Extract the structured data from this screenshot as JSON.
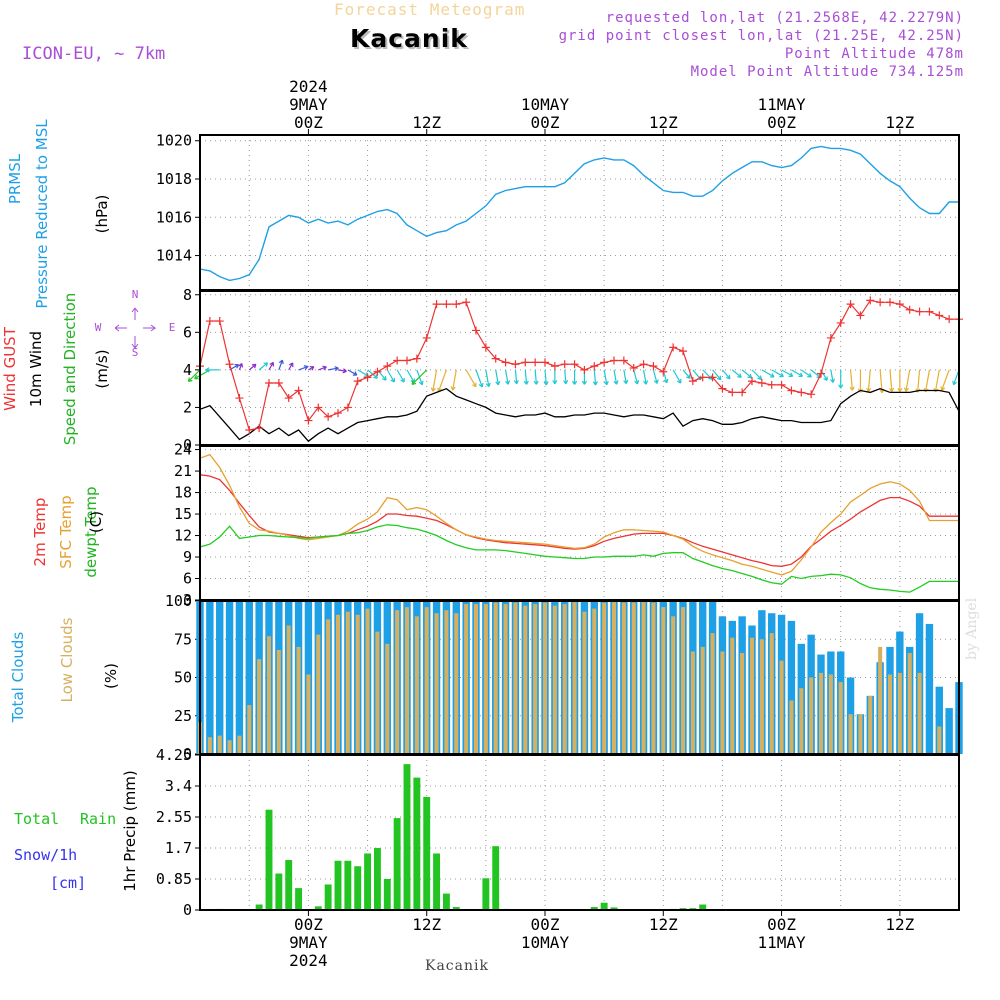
{
  "header": {
    "title": "Kacanik",
    "subtitle": "Forecast Meteogram",
    "model": "ICON-EU, ~ 7km",
    "requested": "requested lon,lat (21.2568E, 42.2279N)",
    "grid_point": "grid point closest lon,lat (21.25E, 42.25N)",
    "point_altitude": "Point Altitude 478m",
    "model_altitude": "Model Point Altitude 734.125m",
    "credit": "by Angel",
    "footer": "Kacanik"
  },
  "time_axis": {
    "year": "2024",
    "top_labels": [
      {
        "t": 0,
        "lines": [
          "2024",
          "9MAY",
          "00Z"
        ]
      },
      {
        "t": 12,
        "lines": [
          "12Z"
        ]
      },
      {
        "t": 24,
        "lines": [
          "10MAY",
          "00Z"
        ]
      },
      {
        "t": 36,
        "lines": [
          "12Z"
        ]
      },
      {
        "t": 48,
        "lines": [
          "11MAY",
          "00Z"
        ]
      },
      {
        "t": 60,
        "lines": [
          "12Z"
        ]
      }
    ],
    "bottom_labels": [
      {
        "t": 0,
        "lines": [
          "00Z",
          "9MAY",
          "2024"
        ]
      },
      {
        "t": 12,
        "lines": [
          "12Z"
        ]
      },
      {
        "t": 24,
        "lines": [
          "00Z",
          "10MAY"
        ]
      },
      {
        "t": 36,
        "lines": [
          "12Z"
        ]
      },
      {
        "t": 48,
        "lines": [
          "00Z",
          "11MAY"
        ]
      },
      {
        "t": 60,
        "lines": [
          "12Z"
        ]
      }
    ],
    "range": [
      -11,
      66
    ]
  },
  "panel_labels": {
    "pressure": [
      "PRMSL",
      "Pressure Reduced to MSL",
      "(hPa)"
    ],
    "wind": [
      "Wind GUST",
      "10m Wind",
      "Speed and Direction",
      "(m/s)"
    ],
    "compass": {
      "n": "N",
      "s": "S",
      "w": "W",
      "e": "E"
    },
    "temp": [
      "2m Temp",
      "SFC Temp",
      "dewpt Temp",
      "(C)"
    ],
    "clouds": [
      "Total Clouds",
      "Low Clouds",
      "(%)"
    ],
    "precip": [
      "Total",
      "Rain",
      "Snow/1h",
      "[cm]",
      "1hr Precip (mm)"
    ]
  },
  "colors": {
    "pressure": "#1ea0e6",
    "gust": "#ee3333",
    "wind": "#000000",
    "temp2m": "#ee3333",
    "sfc": "#e6a030",
    "dewpt": "#22cc22",
    "total_clouds": "#1ea0e6",
    "low_clouds": "#d6b060",
    "rain": "#22c422",
    "label_purple": "#a94ed6",
    "snow_label": "#3333ee"
  },
  "chart_data": [
    {
      "type": "line",
      "title": "PRMSL Pressure Reduced to MSL",
      "ylabel": "(hPa)",
      "ylim": [
        1012.2,
        1020.3
      ],
      "yticks": [
        1014,
        1016,
        1018,
        1020
      ],
      "x_hours": [
        -11,
        -10,
        -9,
        -8,
        -7,
        -6,
        -5,
        -4,
        -3,
        -2,
        -1,
        0,
        1,
        2,
        3,
        4,
        5,
        6,
        7,
        8,
        9,
        10,
        11,
        12,
        13,
        14,
        15,
        16,
        17,
        18,
        19,
        20,
        21,
        22,
        23,
        24,
        25,
        26,
        27,
        28,
        29,
        30,
        31,
        32,
        33,
        34,
        35,
        36,
        37,
        38,
        39,
        40,
        41,
        42,
        43,
        44,
        45,
        46,
        47,
        48,
        49,
        50,
        51,
        52,
        53,
        54,
        55,
        56,
        57,
        58,
        59,
        60,
        61,
        62,
        63,
        64,
        65,
        66
      ],
      "series": [
        {
          "name": "PRMSL",
          "values": [
            1013.3,
            1013.2,
            1012.9,
            1012.7,
            1012.8,
            1013.0,
            1013.8,
            1015.5,
            1015.8,
            1016.1,
            1016.0,
            1015.7,
            1015.9,
            1015.7,
            1015.8,
            1015.6,
            1015.9,
            1016.1,
            1016.3,
            1016.4,
            1016.2,
            1015.6,
            1015.3,
            1015.0,
            1015.2,
            1015.3,
            1015.6,
            1015.8,
            1016.2,
            1016.6,
            1017.2,
            1017.4,
            1017.5,
            1017.6,
            1017.6,
            1017.6,
            1017.6,
            1017.8,
            1018.3,
            1018.8,
            1019.0,
            1019.1,
            1019.0,
            1019.0,
            1018.7,
            1018.2,
            1017.8,
            1017.4,
            1017.3,
            1017.3,
            1017.1,
            1017.1,
            1017.4,
            1017.9,
            1018.3,
            1018.6,
            1018.9,
            1018.9,
            1018.7,
            1018.6,
            1018.7,
            1019.1,
            1019.6,
            1019.7,
            1019.6,
            1019.6,
            1019.5,
            1019.3,
            1018.8,
            1018.3,
            1017.9,
            1017.6,
            1017.0,
            1016.5,
            1016.2,
            1016.2,
            1016.8,
            1016.8
          ]
        }
      ]
    },
    {
      "type": "line",
      "title": "Wind GUST / 10m Wind Speed and Direction",
      "ylabel": "(m/s)",
      "ylim": [
        0,
        8.2
      ],
      "yticks": [
        0,
        2,
        4,
        6,
        8
      ],
      "x_hours_ref": "same as pressure",
      "series": [
        {
          "name": "Wind GUST",
          "values": [
            4.2,
            6.6,
            6.6,
            4.3,
            2.5,
            0.8,
            0.9,
            3.3,
            3.3,
            2.5,
            2.9,
            1.3,
            2.0,
            1.5,
            1.7,
            2.0,
            3.4,
            3.6,
            3.9,
            4.2,
            4.5,
            4.5,
            4.6,
            5.7,
            7.5,
            7.5,
            7.5,
            7.6,
            6.1,
            5.2,
            4.6,
            4.4,
            4.3,
            4.4,
            4.4,
            4.4,
            4.2,
            4.3,
            4.3,
            4.0,
            4.2,
            4.4,
            4.5,
            4.5,
            4.1,
            4.3,
            4.2,
            3.9,
            5.2,
            5.0,
            3.4,
            3.6,
            3.6,
            3.0,
            2.8,
            2.8,
            3.4,
            3.3,
            3.2,
            3.2,
            2.9,
            2.8,
            2.7,
            3.8,
            5.7,
            6.5,
            7.5,
            6.9,
            7.7,
            7.6,
            7.6,
            7.5,
            7.2,
            7.1,
            7.1,
            6.9,
            6.7,
            6.7
          ]
        },
        {
          "name": "10m Wind",
          "values": [
            1.9,
            2.1,
            1.5,
            0.9,
            0.3,
            0.6,
            1.0,
            0.6,
            0.9,
            0.5,
            0.8,
            0.2,
            0.6,
            0.9,
            0.6,
            0.9,
            1.2,
            1.3,
            1.4,
            1.5,
            1.5,
            1.6,
            1.8,
            2.6,
            2.8,
            3.0,
            2.6,
            2.4,
            2.2,
            2.0,
            1.7,
            1.6,
            1.5,
            1.6,
            1.6,
            1.7,
            1.5,
            1.5,
            1.6,
            1.6,
            1.7,
            1.7,
            1.6,
            1.5,
            1.6,
            1.6,
            1.5,
            1.4,
            1.7,
            1.0,
            1.3,
            1.4,
            1.3,
            1.1,
            1.1,
            1.2,
            1.4,
            1.5,
            1.4,
            1.3,
            1.3,
            1.2,
            1.2,
            1.2,
            1.3,
            2.2,
            2.6,
            2.9,
            2.8,
            3.0,
            2.8,
            2.8,
            2.8,
            2.9,
            2.9,
            2.9,
            2.8,
            1.8
          ]
        }
      ],
      "wind_direction_deg": [
        45,
        60,
        90,
        240,
        200,
        230,
        230,
        210,
        200,
        210,
        250,
        240,
        250,
        260,
        280,
        300,
        300,
        310,
        320,
        330,
        330,
        330,
        340,
        45,
        10,
        20,
        10,
        330,
        340,
        350,
        350,
        350,
        355,
        355,
        355,
        355,
        0,
        355,
        0,
        0,
        355,
        350,
        350,
        350,
        345,
        350,
        345,
        345,
        330,
        320,
        320,
        315,
        320,
        320,
        310,
        310,
        315,
        300,
        300,
        300,
        300,
        305,
        310,
        330,
        350,
        0,
        355,
        0,
        5,
        355,
        355,
        0,
        10,
        5,
        10,
        10,
        20,
        20
      ]
    },
    {
      "type": "line",
      "title": "2m Temp / SFC Temp / dewpt Temp",
      "ylabel": "(C)",
      "ylim": [
        3,
        24.5
      ],
      "yticks": [
        3,
        6,
        9,
        12,
        15,
        18,
        21,
        24
      ],
      "series": [
        {
          "name": "2m Temp",
          "values": [
            20.5,
            20.3,
            19.8,
            18.3,
            16.5,
            14.8,
            13.2,
            12.5,
            12.3,
            12.1,
            11.9,
            11.7,
            11.8,
            11.9,
            12.0,
            12.3,
            12.8,
            13.3,
            14.0,
            15.0,
            15.0,
            14.8,
            14.7,
            14.4,
            14.1,
            13.5,
            12.8,
            12.1,
            11.7,
            11.4,
            11.2,
            11.0,
            10.9,
            10.8,
            10.7,
            10.6,
            10.4,
            10.2,
            10.1,
            10.2,
            10.6,
            11.2,
            11.6,
            11.9,
            12.2,
            12.3,
            12.3,
            12.3,
            12.0,
            11.6,
            11.0,
            10.5,
            10.1,
            9.7,
            9.3,
            8.9,
            8.5,
            8.2,
            7.8,
            7.7,
            8.0,
            9.0,
            10.5,
            11.5,
            12.6,
            13.4,
            14.3,
            15.3,
            16.1,
            16.9,
            17.3,
            17.3,
            16.8,
            16.1,
            14.7,
            14.7,
            14.7,
            14.7
          ]
        },
        {
          "name": "SFC Temp",
          "values": [
            22.8,
            23.3,
            21.5,
            19.0,
            16.0,
            13.7,
            12.8,
            12.6,
            12.3,
            12.0,
            11.6,
            11.4,
            11.6,
            11.8,
            12.0,
            12.6,
            13.6,
            14.3,
            15.3,
            17.3,
            17.0,
            15.6,
            15.9,
            15.6,
            14.7,
            13.7,
            12.8,
            12.1,
            11.8,
            11.5,
            11.3,
            11.2,
            11.1,
            11.0,
            10.9,
            10.8,
            10.6,
            10.4,
            10.2,
            10.3,
            10.8,
            11.8,
            12.4,
            12.8,
            12.8,
            12.7,
            12.6,
            12.5,
            12.0,
            11.5,
            10.5,
            9.8,
            9.3,
            8.9,
            8.5,
            8.0,
            7.7,
            7.3,
            6.9,
            6.5,
            7.0,
            8.6,
            10.4,
            12.5,
            13.8,
            15.0,
            16.7,
            17.6,
            18.6,
            19.2,
            19.5,
            19.2,
            18.3,
            16.8,
            14.1,
            14.1,
            14.1,
            14.1
          ]
        },
        {
          "name": "dewpt Temp",
          "values": [
            10.4,
            10.8,
            11.8,
            13.3,
            11.6,
            11.8,
            12.0,
            12.0,
            11.9,
            11.8,
            11.7,
            11.6,
            11.8,
            11.9,
            12.0,
            12.3,
            12.4,
            12.7,
            13.2,
            13.5,
            13.4,
            13.1,
            12.9,
            12.5,
            12.0,
            11.3,
            10.7,
            10.3,
            10.0,
            10.0,
            10.0,
            9.9,
            9.7,
            9.5,
            9.3,
            9.1,
            9.0,
            8.9,
            8.8,
            8.8,
            9.0,
            9.0,
            9.1,
            9.1,
            9.1,
            9.3,
            9.1,
            9.5,
            9.6,
            9.6,
            8.8,
            8.3,
            7.8,
            7.4,
            7.1,
            6.7,
            6.3,
            5.8,
            5.4,
            5.2,
            6.3,
            6.0,
            6.3,
            6.4,
            6.6,
            6.5,
            6.1,
            5.3,
            4.7,
            4.5,
            4.4,
            4.2,
            4.1,
            4.8,
            5.6,
            5.6,
            5.6,
            5.6
          ]
        }
      ]
    },
    {
      "type": "bar",
      "title": "Total Clouds / Low Clouds",
      "ylabel": "(%)",
      "ylim": [
        0,
        100
      ],
      "yticks": [
        0,
        25,
        50,
        75,
        100
      ],
      "series": [
        {
          "name": "Total Clouds",
          "values": [
            100,
            100,
            100,
            100,
            100,
            100,
            100,
            100,
            100,
            100,
            100,
            100,
            100,
            100,
            100,
            100,
            100,
            100,
            100,
            100,
            100,
            100,
            100,
            100,
            100,
            100,
            100,
            100,
            100,
            100,
            100,
            100,
            100,
            100,
            100,
            100,
            100,
            100,
            100,
            100,
            100,
            100,
            100,
            100,
            100,
            100,
            100,
            100,
            100,
            100,
            100,
            100,
            100,
            90,
            87,
            90,
            84,
            94,
            92,
            91,
            87,
            72,
            78,
            65,
            67,
            67,
            50,
            26,
            38,
            60,
            70,
            80,
            70,
            92,
            85,
            44,
            30,
            47
          ]
        },
        {
          "name": "Low Clouds",
          "values": [
            21,
            11,
            12,
            9,
            12,
            32,
            62,
            77,
            68,
            84,
            70,
            52,
            78,
            88,
            91,
            93,
            91,
            95,
            80,
            72,
            94,
            96,
            90,
            96,
            92,
            94,
            92,
            98,
            98,
            98,
            99,
            98,
            99,
            97,
            98,
            99,
            97,
            98,
            100,
            93,
            95,
            99,
            100,
            99,
            99,
            100,
            99,
            96,
            90,
            96,
            67,
            70,
            79,
            67,
            76,
            66,
            76,
            75,
            79,
            61,
            35,
            43,
            50,
            53,
            52,
            47,
            26,
            26,
            38,
            70,
            52,
            53,
            66,
            53,
            0,
            18,
            0,
            0
          ]
        }
      ]
    },
    {
      "type": "bar",
      "title": "Total Rain Snow/1h",
      "ylabel": "1hr Precip (mm)",
      "ylim": [
        0,
        4.25
      ],
      "yticks": [
        0,
        0.85,
        1.7,
        2.55,
        3.4,
        4.25
      ],
      "ytick_labels": [
        "0",
        "0.85",
        "1.7",
        "2.55",
        "3.4",
        "4.25"
      ],
      "series": [
        {
          "name": "Total Rain",
          "values": [
            0,
            0,
            0.03,
            0,
            0,
            0,
            0.15,
            2.75,
            1.0,
            1.37,
            0.6,
            0,
            0.1,
            0.7,
            1.35,
            1.35,
            1.2,
            1.55,
            1.7,
            0.85,
            2.52,
            4.0,
            3.63,
            3.1,
            1.55,
            0.45,
            0.08,
            0,
            0,
            0.87,
            1.75,
            0.03,
            0,
            0,
            0,
            0,
            0,
            0,
            0,
            0,
            0.08,
            0.2,
            0.07,
            0,
            0,
            0,
            0,
            0,
            0.03,
            0.05,
            0.05,
            0.15,
            0,
            0,
            0,
            0,
            0,
            0,
            0,
            0,
            0,
            0,
            0,
            0,
            0,
            0,
            0,
            0,
            0,
            0,
            0,
            0,
            0,
            0,
            0,
            0,
            0,
            0
          ]
        }
      ]
    }
  ]
}
